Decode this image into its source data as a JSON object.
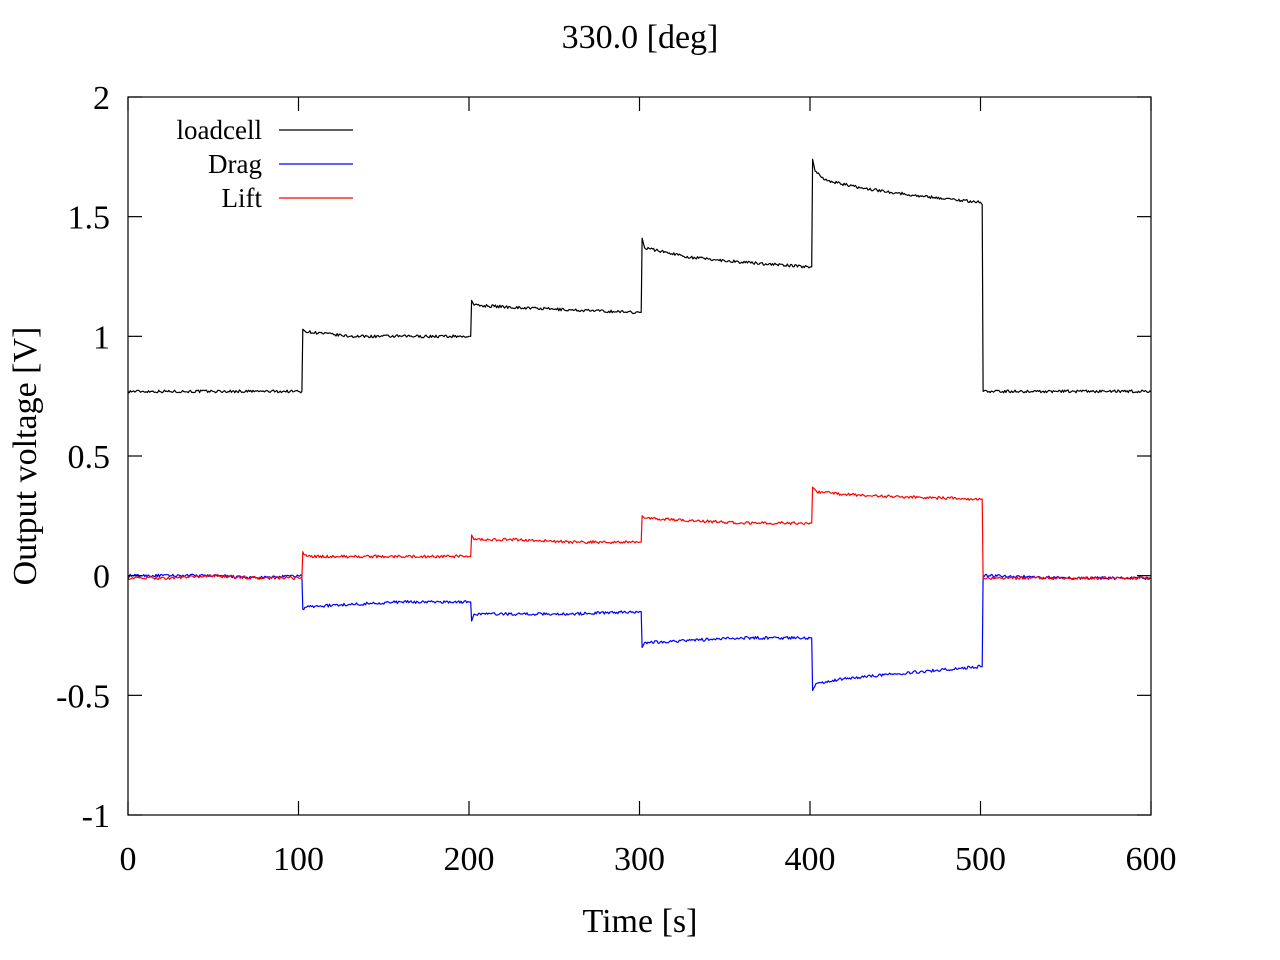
{
  "chart_data": {
    "type": "line",
    "title": "330.0 [deg]",
    "xlabel": "Time [s]",
    "ylabel": "Output voltage [V]",
    "xlim": [
      0,
      600
    ],
    "ylim": [
      -1,
      2
    ],
    "x_ticks": [
      {
        "value": 0,
        "label": "0"
      },
      {
        "value": 100,
        "label": "100"
      },
      {
        "value": 200,
        "label": "200"
      },
      {
        "value": 300,
        "label": "300"
      },
      {
        "value": 400,
        "label": "400"
      },
      {
        "value": 500,
        "label": "500"
      },
      {
        "value": 600,
        "label": "600"
      }
    ],
    "y_ticks": [
      {
        "value": 2,
        "label": "2"
      },
      {
        "value": 1.5,
        "label": "1.5"
      },
      {
        "value": 1,
        "label": "1"
      },
      {
        "value": 0.5,
        "label": "0.5"
      },
      {
        "value": 0,
        "label": "0"
      },
      {
        "value": -0.5,
        "label": "-0.5"
      },
      {
        "value": -1,
        "label": "-1"
      }
    ],
    "grid": false,
    "legend_position": "top-left",
    "series": [
      {
        "name": "loadcell",
        "color": "#000000",
        "x": [
          0,
          50,
          102,
          102.5,
          104,
          130,
          160,
          200,
          201,
          201.5,
          203,
          230,
          260,
          300,
          301,
          301.5,
          303,
          330,
          360,
          400,
          401,
          401.5,
          403,
          410,
          430,
          460,
          500,
          501,
          501.5,
          505,
          550,
          600
        ],
        "y": [
          0.77,
          0.77,
          0.77,
          1.03,
          1.02,
          1.0,
          1.0,
          1.0,
          1.0,
          1.15,
          1.13,
          1.12,
          1.11,
          1.1,
          1.1,
          1.41,
          1.37,
          1.33,
          1.31,
          1.29,
          1.29,
          1.74,
          1.69,
          1.65,
          1.62,
          1.59,
          1.56,
          1.55,
          0.77,
          0.77,
          0.77,
          0.77
        ]
      },
      {
        "name": "Drag",
        "color": "#0000ff",
        "x": [
          0,
          25,
          50,
          75,
          102,
          102.5,
          105,
          130,
          160,
          200,
          201,
          201.5,
          203,
          230,
          260,
          300,
          301,
          301.5,
          303,
          330,
          360,
          400,
          401,
          401.5,
          404,
          420,
          450,
          500,
          501,
          501.5,
          505,
          550,
          600
        ],
        "y": [
          0.0,
          0.0,
          0.0,
          -0.01,
          0.0,
          -0.14,
          -0.13,
          -0.12,
          -0.11,
          -0.11,
          -0.11,
          -0.19,
          -0.16,
          -0.16,
          -0.16,
          -0.15,
          -0.15,
          -0.3,
          -0.28,
          -0.27,
          -0.26,
          -0.26,
          -0.26,
          -0.48,
          -0.45,
          -0.43,
          -0.41,
          -0.38,
          -0.38,
          0.0,
          0.0,
          -0.01,
          -0.01
        ]
      },
      {
        "name": "Lift",
        "color": "#ff0000",
        "x": [
          0,
          25,
          50,
          75,
          102,
          102.5,
          105,
          130,
          160,
          200,
          201,
          201.5,
          203,
          230,
          260,
          300,
          301,
          301.5,
          303,
          330,
          360,
          400,
          401,
          401.5,
          404,
          420,
          450,
          500,
          501,
          501.5,
          505,
          550,
          600
        ],
        "y": [
          -0.01,
          -0.01,
          0.0,
          -0.01,
          -0.01,
          0.1,
          0.08,
          0.08,
          0.08,
          0.08,
          0.08,
          0.17,
          0.15,
          0.15,
          0.14,
          0.14,
          0.14,
          0.25,
          0.24,
          0.23,
          0.22,
          0.22,
          0.22,
          0.37,
          0.35,
          0.34,
          0.33,
          0.32,
          0.32,
          -0.01,
          -0.01,
          -0.01,
          -0.01
        ]
      }
    ]
  }
}
